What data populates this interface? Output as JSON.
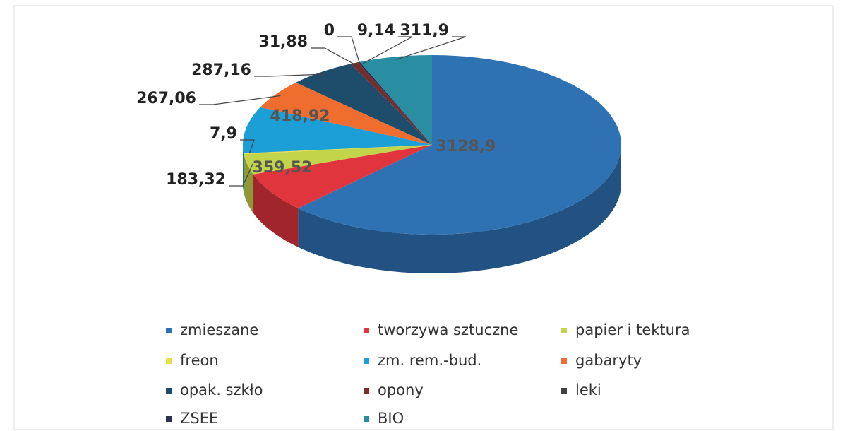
{
  "chart_data": {
    "type": "pie3d",
    "categories": [
      "zmieszane",
      "tworzywa sztuczne",
      "papier i tektura",
      "freon",
      "zm. rem.-bud.",
      "gabaryty",
      "opak. szkło",
      "opony",
      "leki",
      "ZSEE",
      "BIO"
    ],
    "values": [
      3128.9,
      359.52,
      183.32,
      7.9,
      418.92,
      267.06,
      287.16,
      31.88,
      0,
      9.14,
      311.9
    ],
    "value_labels": [
      "3128,9",
      "359,52",
      "183,32",
      "7,9",
      "418,92",
      "267,06",
      "287,16",
      "31,88",
      "0",
      "9,14",
      "311,9"
    ],
    "colors": [
      "#2f72b4",
      "#e0353d",
      "#c2d54a",
      "#e8e04a",
      "#1c9fd6",
      "#ef6d2e",
      "#1e4d6c",
      "#7a2b2b",
      "#404040",
      "#2d3050",
      "#2a8ea2"
    ],
    "legend": "bottom"
  }
}
